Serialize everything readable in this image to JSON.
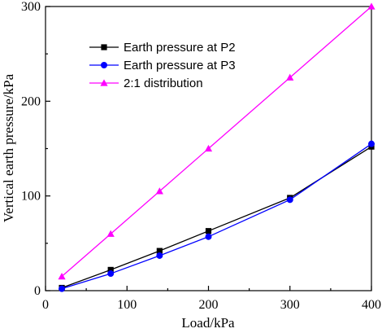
{
  "chart_data": {
    "type": "line",
    "xlabel": "Load/kPa",
    "ylabel": "Vertical earth pressure/kPa",
    "xlim": [
      0,
      400
    ],
    "ylim": [
      0,
      300
    ],
    "x_ticks": [
      0,
      100,
      200,
      300,
      400
    ],
    "y_ticks": [
      0,
      100,
      200,
      300
    ],
    "x_tick_labels": [
      "0",
      "100",
      "200",
      "300",
      "400"
    ],
    "y_tick_labels": [
      "0",
      "100",
      "200",
      "300"
    ],
    "grid": false,
    "legend_position": "top-left",
    "series": [
      {
        "name": "Earth pressure at P2",
        "color": "#000000",
        "marker": "square",
        "x": [
          20,
          80,
          140,
          200,
          300,
          400
        ],
        "y": [
          3,
          22,
          42,
          63,
          98,
          152
        ]
      },
      {
        "name": "Earth pressure at P3",
        "color": "#0000ff",
        "marker": "circle",
        "x": [
          20,
          80,
          140,
          200,
          300,
          400
        ],
        "y": [
          2,
          18,
          37,
          57,
          96,
          155
        ]
      },
      {
        "name": "2:1 distribution",
        "color": "#ff00ff",
        "marker": "triangle",
        "x": [
          20,
          80,
          140,
          200,
          300,
          400
        ],
        "y": [
          15,
          60,
          105,
          150,
          225,
          300
        ]
      }
    ]
  }
}
